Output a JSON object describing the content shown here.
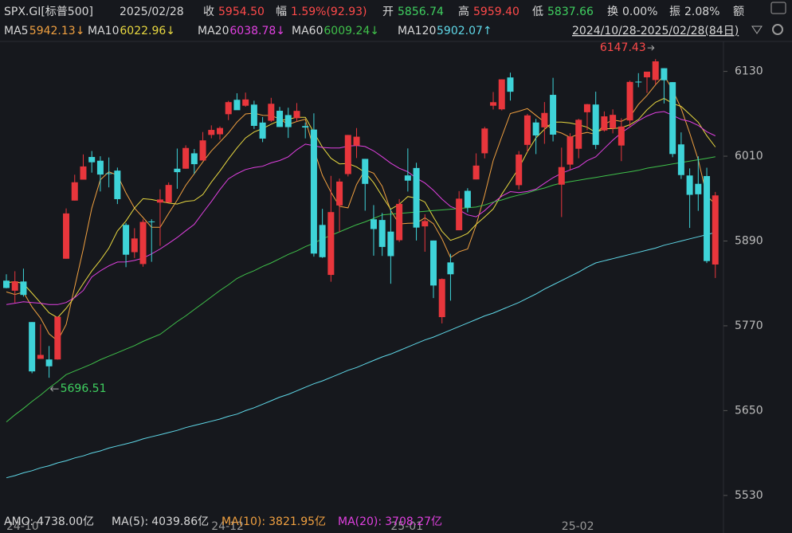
{
  "header": {
    "symbol": "SPX.GI[标普500]",
    "date": "2025/02/28",
    "fields": [
      {
        "label": "收",
        "value": "5954.50",
        "color": "#ff4a4a"
      },
      {
        "label": "幅",
        "value": "1.59%(92.93)",
        "color": "#ff4a4a"
      },
      {
        "label": "开",
        "value": "5856.74",
        "color": "#3fd060"
      },
      {
        "label": "高",
        "value": "5959.40",
        "color": "#ff4a4a"
      },
      {
        "label": "低",
        "value": "5837.66",
        "color": "#3fd060"
      },
      {
        "label": "换",
        "value": "0.00%",
        "color": "#d8d8d8"
      },
      {
        "label": "振",
        "value": "2.08%",
        "color": "#d8d8d8"
      },
      {
        "label": "额",
        "value": "",
        "color": "#d8d8d8"
      }
    ],
    "range": "2024/10/28-2025/02/28(84日)"
  },
  "footer": [
    {
      "label": "AMO:",
      "value": "4738.00亿",
      "color": "#d8d8d8"
    },
    {
      "label": "MA(5):",
      "value": "4039.86亿",
      "color": "#d8d8d8"
    },
    {
      "label": "MA(10):",
      "value": "3821.95亿",
      "color": "#f0a040"
    },
    {
      "label": "MA(20):",
      "value": "3708.27亿",
      "color": "#e040e0"
    }
  ],
  "chart_data": {
    "type": "candlestick",
    "up_color": "#e8363c",
    "down_color": "#3ed3d8",
    "categories": [
      "24-10",
      null,
      null,
      null,
      null,
      null,
      null,
      null,
      null,
      null,
      null,
      null,
      null,
      null,
      null,
      null,
      null,
      null,
      null,
      null,
      null,
      null,
      null,
      null,
      "24-12",
      null,
      null,
      null,
      null,
      null,
      null,
      null,
      null,
      null,
      null,
      null,
      null,
      null,
      null,
      null,
      null,
      null,
      null,
      null,
      null,
      "25-01",
      null,
      null,
      null,
      null,
      null,
      null,
      null,
      null,
      null,
      null,
      null,
      null,
      null,
      null,
      null,
      null,
      null,
      null,
      null,
      "25-02",
      null,
      null,
      null,
      null,
      null,
      null,
      null,
      null,
      null,
      null,
      null,
      null,
      null,
      null,
      null,
      null,
      null,
      null
    ],
    "open": [
      5833.9,
      5819.7,
      5832.7,
      5775.3,
      5723.2,
      5722.4,
      5722.4,
      5864.9,
      5947.2,
      5976.8,
      6008.9,
      6003.6,
      5985.8,
      5989.6,
      5912.8,
      5874.2,
      5857.4,
      5917.7,
      5944.4,
      5944.4,
      5992.3,
      5992.3,
      6014.1,
      6003.9,
      6040.1,
      6041.0,
      6069.4,
      6089.8,
      6081.4,
      6083.0,
      6057.6,
      6060.2,
      6074.3,
      6068.2,
      6063.8,
      6052.6,
      6047.7,
      5912.7,
      5842.0,
      5940.3,
      5984.7,
      6025.0,
      6006.2,
      5920.7,
      5919.7,
      5903.3,
      5891.1,
      5982.8,
      5993.3,
      5910.7,
      5890.7,
      5782.3,
      5859.7,
      5905.2,
      5961.0,
      5977.1,
      6014.1,
      6081.4,
      6076.3,
      6121.4,
      5969.0,
      6026.0,
      6057.7,
      6050.8,
      6096.8,
      5969.7,
      5998.1,
      6020.5,
      6072.2,
      6083.1,
      6046.4,
      6049.3,
      6025.1,
      6060.6,
      6115.5,
      6121.6,
      6117.8,
      6134.5,
      6114.8,
      6026.7,
      5982.7,
      5970.9,
      5981.9,
      5856.74
    ],
    "high": [
      5842.9,
      5847.2,
      5850.9,
      5775.3,
      5772.0,
      5741.4,
      5783.4,
      5936.1,
      5983.8,
      6012.5,
      6017.3,
      6009.9,
      6008.2,
      5993.9,
      5915.6,
      5908.1,
      5920.6,
      5920.7,
      5963.1,
      5972.9,
      6020.8,
      6025.4,
      6020.2,
      6044.2,
      6053.6,
      6052.1,
      6088.3,
      6099.0,
      6100.0,
      6088.5,
      6065.4,
      6092.6,
      6079.7,
      6078.6,
      6085.2,
      6057.7,
      6070.7,
      5935.5,
      5982.1,
      5978.3,
      6040.1,
      6049.8,
      6006.2,
      5940.8,
      5929.7,
      5935.1,
      5949.3,
      6021.0,
      6000.7,
      5927.9,
      5890.7,
      5837.0,
      5871.9,
      5960.6,
      5964.7,
      6014.0,
      6051.5,
      6100.8,
      6118.7,
      6128.2,
      6017.2,
      6069.9,
      6062.8,
      6086.6,
      6120.9,
      6022.1,
      6042.5,
      6062.9,
      6084.0,
      6101.3,
      6073.4,
      6076.3,
      6063.6,
      6116.9,
      6127.5,
      6129.6,
      6147.43,
      6134.5,
      6114.8,
      6043.7,
      5992.7,
      6009.8,
      5993.7,
      5959.4
    ],
    "low": [
      5823.1,
      5802.6,
      5811.3,
      5702.9,
      5723.2,
      5696.51,
      5722.1,
      5864.9,
      5947.2,
      5976.8,
      5986.7,
      5960.1,
      5965.9,
      5942.3,
      5853.0,
      5865.9,
      5853.6,
      5860.6,
      5883.1,
      5944.4,
      5963.9,
      5992.2,
      5984.9,
      6003.9,
      6035.3,
      6033.4,
      6061.1,
      6079.0,
      6080.0,
      6048.6,
      6029.9,
      6058.4,
      6051.3,
      6035.8,
      6059.1,
      6035.2,
      5867.8,
      5866.1,
      5832.3,
      5902.6,
      5981.4,
      6007.4,
      5932.9,
      5869.2,
      5868.9,
      5829.5,
      5888.7,
      5960.0,
      5890.7,
      5874.8,
      5809.2,
      5773.4,
      5805.6,
      5905.2,
      5930.6,
      5977.1,
      6006.9,
      6076.1,
      6074.7,
      6088.7,
      5962.9,
      6016.0,
      6013.0,
      6027.5,
      6030.9,
      5923.9,
      5990.9,
      6007.1,
      6046.8,
      6020.0,
      6044.8,
      6042.3,
      6003.0,
      6051.0,
      6107.6,
      6099.5,
      6111.2,
      6084.6,
      6008.6,
      5977.8,
      5908.5,
      5932.7,
      5858.8,
      5837.66
    ],
    "close": [
      5823.5,
      5832.9,
      5813.7,
      5705.5,
      5728.8,
      5712.7,
      5782.8,
      5929.0,
      5973.1,
      5995.5,
      6001.4,
      5984.0,
      5985.4,
      5949.2,
      5870.6,
      5893.6,
      5917.0,
      5917.1,
      5948.7,
      5969.3,
      5987.4,
      6021.6,
      5998.7,
      6032.4,
      6047.2,
      6049.9,
      6086.5,
      6075.1,
      6090.3,
      6052.9,
      6034.9,
      6084.2,
      6051.3,
      6051.1,
      6074.1,
      6050.6,
      5872.2,
      5867.1,
      5930.9,
      5974.1,
      6040.0,
      6037.6,
      5970.8,
      5906.9,
      5881.6,
      5868.6,
      5942.5,
      5975.4,
      5909.0,
      5918.3,
      5827.0,
      5836.2,
      5842.9,
      5949.9,
      5937.3,
      5996.7,
      6049.2,
      6086.4,
      6118.7,
      6101.2,
      6012.3,
      6067.7,
      6039.3,
      6071.2,
      6040.5,
      5994.6,
      6037.9,
      6061.5,
      6083.6,
      6026.0,
      6066.4,
      6068.5,
      6052.0,
      6115.1,
      6114.6,
      6129.6,
      6144.2,
      6117.5,
      6013.1,
      5983.3,
      5955.3,
      5956.1,
      5861.6,
      5954.5
    ],
    "series": [
      {
        "name": "MA5",
        "current": "5942.13↓",
        "color": "#f0a040",
        "values": [
          5818.0,
          5814.4,
          5817.6,
          5796.7,
          5780.9,
          5758.7,
          5748.7,
          5771.8,
          5825.3,
          5878.6,
          5936.4,
          5976.6,
          5987.9,
          5983.1,
          5958.1,
          5936.6,
          5923.2,
          5909.5,
          5909.4,
          5929.1,
          5947.9,
          5968.8,
          5985.1,
          6001.9,
          6017.5,
          6030.0,
          6042.9,
          6058.2,
          6069.8,
          6070.9,
          6067.9,
          6067.5,
          6062.7,
          6054.9,
          6059.1,
          6062.3,
          6019.9,
          5983.0,
          5959.0,
          5939.0,
          5936.9,
          5969.9,
          5990.7,
          5985.9,
          5967.4,
          5933.1,
          5914.1,
          5915.0,
          5915.4,
          5922.8,
          5914.4,
          5893.2,
          5866.7,
          5874.9,
          5878.7,
          5912.6,
          5955.2,
          6003.9,
          6037.7,
          6070.4,
          6073.6,
          6077.3,
          6067.8,
          6058.3,
          6046.2,
          6042.7,
          6036.7,
          6041.1,
          6043.6,
          6040.7,
          6055.1,
          6061.2,
          6059.3,
          6065.6,
          6083.3,
          6096.0,
          6111.1,
          6124.2,
          6103.8,
          6077.5,
          6042.7,
          6005.1,
          5953.9,
          5942.13
        ]
      },
      {
        "name": "MA10",
        "current": "6022.96↓",
        "color": "#e8d840",
        "values": [
          5830.8,
          5832.6,
          5829.7,
          5816.1,
          5802.5,
          5788.4,
          5781.6,
          5794.7,
          5811.0,
          5829.8,
          5847.6,
          5862.7,
          5879.9,
          5904.2,
          5918.4,
          5936.5,
          5949.9,
          5948.7,
          5946.3,
          5943.6,
          5942.3,
          5946.0,
          5947.3,
          5955.7,
          5973.3,
          5989.0,
          6005.9,
          6021.7,
          6035.9,
          6044.2,
          6049.0,
          6055.2,
          6060.5,
          6062.4,
          6065.0,
          6065.1,
          6043.7,
          6022.9,
          6007.0,
          5999.1,
          5999.6,
          5994.9,
          5986.9,
          5972.5,
          5953.2,
          5935.0,
          5942.0,
          5952.9,
          5950.7,
          5945.1,
          5923.8,
          5903.7,
          5890.9,
          5895.2,
          5900.8,
          5913.5,
          5924.2,
          5935.3,
          5956.3,
          5974.6,
          5993.1,
          6016.3,
          6035.9,
          6048.0,
          6058.3,
          6058.2,
          6057.0,
          6054.5,
          6051.0,
          6043.5,
          6048.9,
          6049.0,
          6050.2,
          6054.6,
          6062.0,
          6075.6,
          6086.2,
          6091.8,
          6084.7,
          6080.4,
          6069.4,
          6058.1,
          6039.1,
          6022.96
        ]
      },
      {
        "name": "MA20",
        "current": "6038.78↓",
        "color": "#e040e0",
        "values": [
          5800,
          5802,
          5804,
          5803,
          5802,
          5800,
          5800,
          5803,
          5810,
          5820,
          5839.2,
          5847.7,
          5854.8,
          5860.2,
          5860.5,
          5862.5,
          5865.8,
          5871.7,
          5878.7,
          5886.7,
          5895.0,
          5904.4,
          5913.6,
          5930.0,
          5945.9,
          5962.8,
          5977.9,
          5985.2,
          5991.1,
          5993.9,
          5995.7,
          6000.6,
          6003.9,
          6009.1,
          6019.2,
          6027.1,
          6024.8,
          6022.3,
          6021.5,
          6021.7,
          6024.3,
          6025.1,
          6023.7,
          6017.5,
          6009.1,
          6000.1,
          5992.9,
          5987.9,
          5978.9,
          5972.1,
          5961.7,
          5949.3,
          5938.9,
          5933.9,
          5927.0,
          5924.3,
          5933.1,
          5944.1,
          5953.5,
          5959.9,
          5958.5,
          5960.0,
          5963.4,
          5971.6,
          5979.6,
          5985.9,
          5990.6,
          5994.9,
          6003.7,
          6009.1,
          6021.0,
          6032.7,
          6043.1,
          6051.3,
          6060.2,
          6066.9,
          6071.6,
          6073.2,
          6067.9,
          6062.0,
          6059.2,
          6053.6,
          6044.7,
          6038.78
        ]
      },
      {
        "name": "MA60",
        "current": "6009.24↓",
        "color": "#3fc04a",
        "values": [
          5634,
          5644,
          5653,
          5663,
          5672,
          5682,
          5691,
          5701,
          5706,
          5711,
          5716,
          5722,
          5727,
          5732,
          5737,
          5742,
          5748,
          5753,
          5758,
          5767,
          5776,
          5784,
          5793,
          5802,
          5811,
          5820,
          5828,
          5837,
          5843,
          5848,
          5854,
          5859,
          5865,
          5871,
          5876,
          5882,
          5887,
          5893,
          5898,
          5903,
          5908,
          5913,
          5917,
          5922,
          5927,
          5928,
          5929,
          5930,
          5931,
          5932,
          5933,
          5934,
          5935,
          5936,
          5937,
          5938,
          5941,
          5945,
          5948,
          5952,
          5955,
          5958,
          5962,
          5965,
          5969,
          5972,
          5974,
          5976,
          5978,
          5980,
          5982,
          5984,
          5986,
          5988,
          5990,
          5993,
          5995,
          5997,
          5999,
          6001,
          6003,
          6005,
          6007,
          6009.24
        ]
      },
      {
        "name": "MA120",
        "current": "5902.07↑",
        "color": "#5fd8e8",
        "values": [
          5555,
          5558,
          5562,
          5565,
          5569,
          5572,
          5576,
          5579,
          5583,
          5586,
          5590,
          5593,
          5597,
          5600,
          5603,
          5606,
          5610,
          5613,
          5616,
          5619,
          5622,
          5626,
          5629,
          5632,
          5635,
          5638,
          5642,
          5645,
          5650,
          5654,
          5659,
          5664,
          5669,
          5673,
          5678,
          5683,
          5688,
          5692,
          5697,
          5702,
          5707,
          5711,
          5716,
          5721,
          5726,
          5730,
          5735,
          5740,
          5745,
          5750,
          5754,
          5759,
          5764,
          5769,
          5774,
          5779,
          5784,
          5788,
          5793,
          5798,
          5803,
          5809,
          5815,
          5822,
          5828,
          5834,
          5840,
          5846,
          5853,
          5859,
          5862,
          5865,
          5868,
          5871,
          5874,
          5877,
          5880,
          5884,
          5887,
          5890,
          5893,
          5896,
          5899,
          5902.07
        ]
      }
    ],
    "ylim": [
      5496,
      6169
    ],
    "yticks": [
      5530,
      5650,
      5770,
      5890,
      6010,
      6130
    ]
  }
}
